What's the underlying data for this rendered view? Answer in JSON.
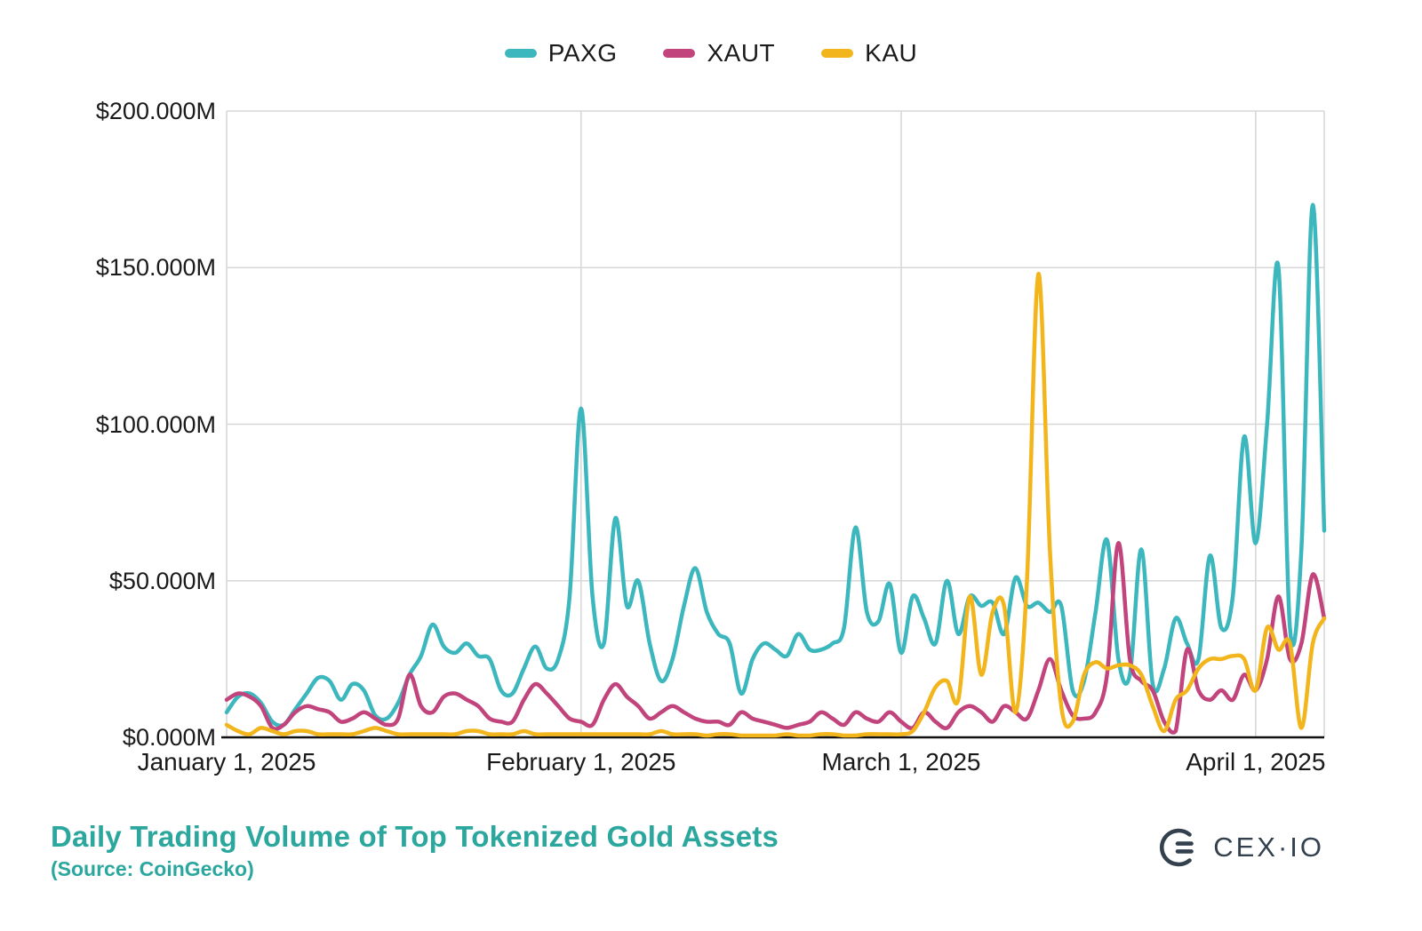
{
  "colors": {
    "title": "#2BA79E",
    "logo": "#33404E",
    "grid": "#D7D7D7",
    "axis": "#111111",
    "text": "#1A1A1A"
  },
  "footer": {
    "title": "Daily Trading Volume of Top Tokenized Gold Assets",
    "source": "(Source: CoinGecko)",
    "brand": "CEX·IO"
  },
  "chart_data": {
    "type": "line",
    "title": "Daily Trading Volume of Top Tokenized Gold Assets",
    "source": "CoinGecko",
    "y_unit": "USD millions",
    "ylim": [
      0,
      200
    ],
    "y_tick_labels": [
      "$200.000M",
      "$150.000M",
      "$100.000M",
      "$50.000M",
      "$0.000M"
    ],
    "x_tick_labels": [
      "January 1, 2025",
      "February 1, 2025",
      "March 1, 2025",
      "April 1, 2025"
    ],
    "x_tick_day_index": [
      0,
      31,
      59,
      90
    ],
    "x_start_date": "January 1, 2025",
    "x_end_date": "April 7, 2025",
    "x_unit": "day",
    "grid": true,
    "legend_position": "top-center",
    "series": [
      {
        "name": "PAXG",
        "color": "#3CB7BE",
        "values": [
          8,
          13,
          14,
          11,
          5,
          4,
          9,
          14,
          19,
          18,
          12,
          17,
          15,
          7,
          6,
          11,
          20,
          26,
          36,
          29,
          27,
          30,
          26,
          25,
          15,
          14,
          22,
          29,
          22,
          25,
          45,
          105,
          45,
          30,
          70,
          42,
          50,
          30,
          18,
          25,
          42,
          54,
          40,
          33,
          30,
          14,
          25,
          30,
          28,
          26,
          33,
          28,
          28,
          30,
          35,
          67,
          40,
          37,
          49,
          27,
          45,
          38,
          30,
          50,
          33,
          45,
          42,
          43,
          33,
          51,
          42,
          43,
          40,
          42,
          15,
          18,
          40,
          63,
          25,
          20,
          60,
          17,
          22,
          38,
          30,
          25,
          58,
          35,
          45,
          96,
          62,
          100,
          150,
          35,
          60,
          170,
          66
        ]
      },
      {
        "name": "XAUT",
        "color": "#C2447C",
        "values": [
          12,
          14,
          13,
          10,
          3,
          4,
          8,
          10,
          9,
          8,
          5,
          6,
          8,
          6,
          4,
          6,
          20,
          10,
          8,
          13,
          14,
          12,
          10,
          6,
          5,
          5,
          12,
          17,
          14,
          10,
          6,
          5,
          4,
          12,
          17,
          13,
          10,
          6,
          8,
          10,
          8,
          6,
          5,
          5,
          4,
          8,
          6,
          5,
          4,
          3,
          4,
          5,
          8,
          6,
          4,
          8,
          6,
          5,
          8,
          5,
          3,
          8,
          5,
          3,
          8,
          10,
          8,
          5,
          10,
          8,
          6,
          15,
          25,
          15,
          7,
          6,
          8,
          20,
          62,
          25,
          18,
          15,
          5,
          2,
          28,
          15,
          12,
          15,
          12,
          20,
          15,
          25,
          45,
          25,
          30,
          52,
          38
        ]
      },
      {
        "name": "KAU",
        "color": "#F2B51C",
        "values": [
          4,
          2,
          1,
          3,
          2,
          1,
          2,
          2,
          1,
          1,
          1,
          1,
          2,
          3,
          2,
          1,
          1,
          1,
          1,
          1,
          1,
          2,
          2,
          1,
          1,
          1,
          2,
          1,
          1,
          1,
          1,
          1,
          1,
          1,
          1,
          1,
          1,
          1,
          2,
          1,
          1,
          1,
          0.5,
          1,
          1,
          0.5,
          0.5,
          0.5,
          0.5,
          1,
          0.5,
          0.5,
          1,
          1,
          0.5,
          0.5,
          1,
          1,
          1,
          1,
          2,
          8,
          16,
          18,
          12,
          45,
          20,
          40,
          42,
          8,
          50,
          148,
          60,
          10,
          5,
          20,
          24,
          22,
          23,
          23,
          20,
          10,
          2,
          12,
          15,
          22,
          25,
          25,
          26,
          25,
          15,
          35,
          28,
          30,
          3,
          30,
          38
        ]
      }
    ]
  }
}
